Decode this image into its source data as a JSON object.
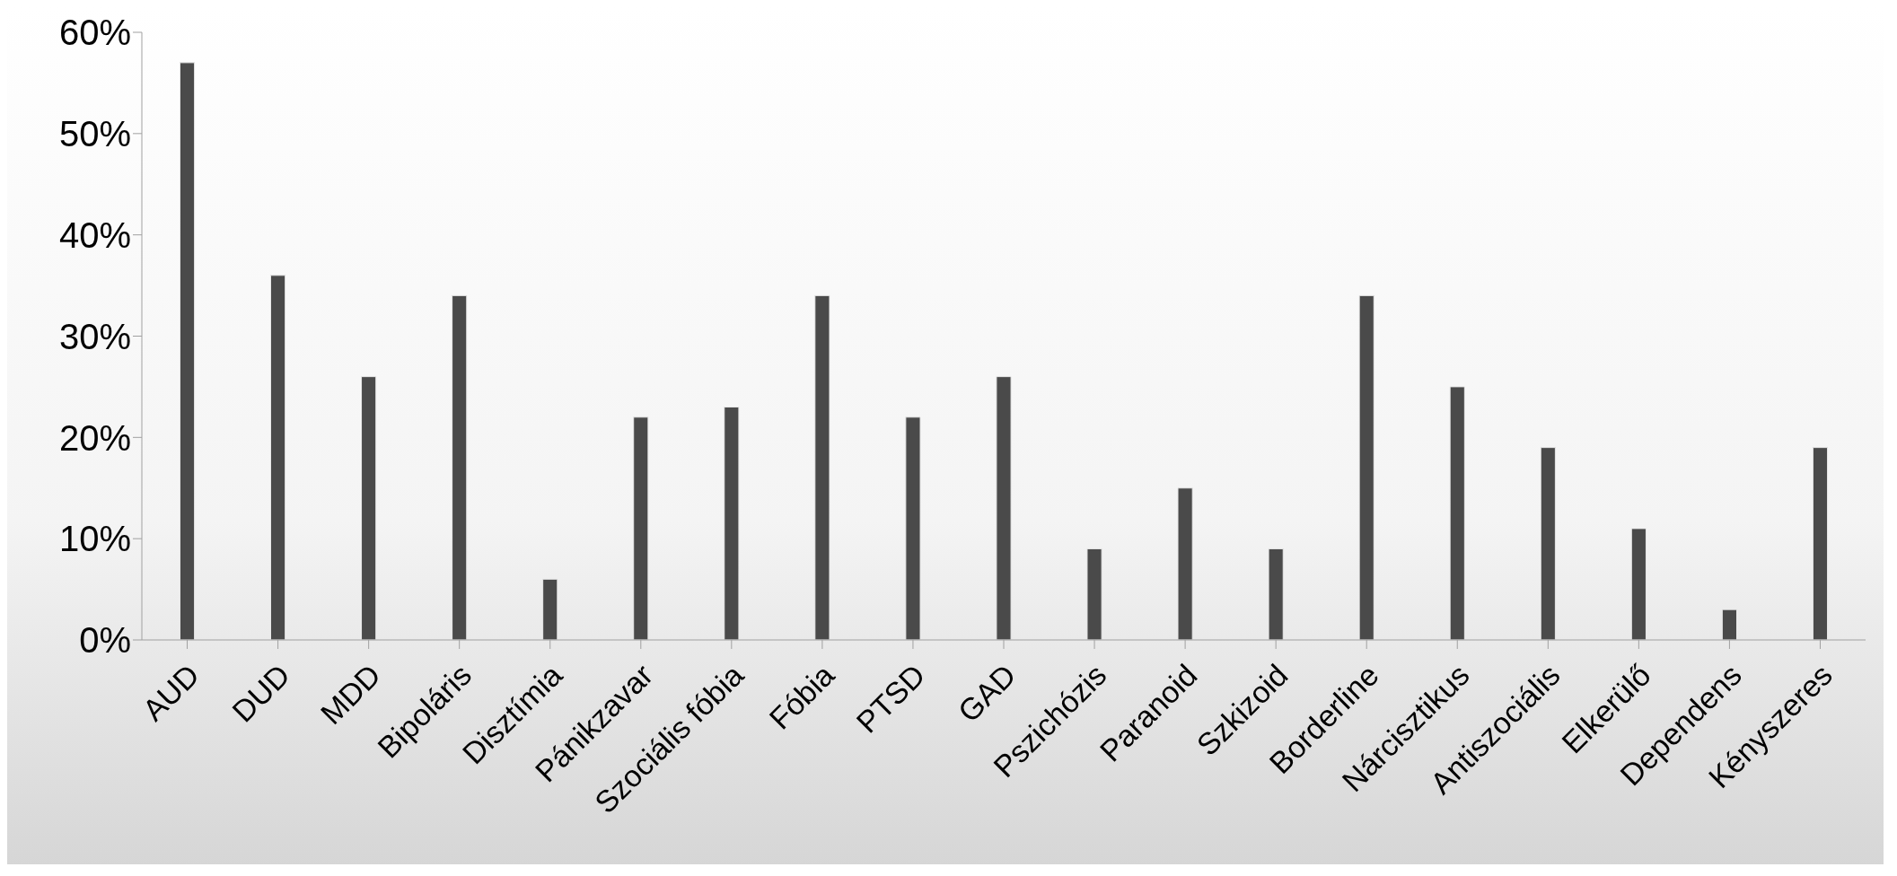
{
  "chart_data": {
    "type": "bar",
    "categories": [
      "AUD",
      "DUD",
      "MDD",
      "Bipoláris",
      "Disztímia",
      "Pánikzavar",
      "Szociális fóbia",
      "Fóbia",
      "PTSD",
      "GAD",
      "Pszichózis",
      "Paranoid",
      "Szkizoid",
      "Borderline",
      "Nárcisztikus",
      "Antiszociális",
      "Elkerülő",
      "Dependens",
      "Kényszeres"
    ],
    "values": [
      57,
      36,
      26,
      34,
      6,
      22,
      23,
      34,
      22,
      26,
      9,
      15,
      9,
      34,
      25,
      19,
      11,
      3,
      19
    ],
    "color": "#4a4a4a",
    "ylim": [
      0,
      60
    ],
    "yticks": [
      {
        "value": 0,
        "label": "0%"
      },
      {
        "value": 10,
        "label": "10%"
      },
      {
        "value": 20,
        "label": "20%"
      },
      {
        "value": 30,
        "label": "30%"
      },
      {
        "value": 40,
        "label": "40%"
      },
      {
        "value": 50,
        "label": "50%"
      },
      {
        "value": 60,
        "label": "60%"
      }
    ],
    "grid": false,
    "legend": false
  }
}
